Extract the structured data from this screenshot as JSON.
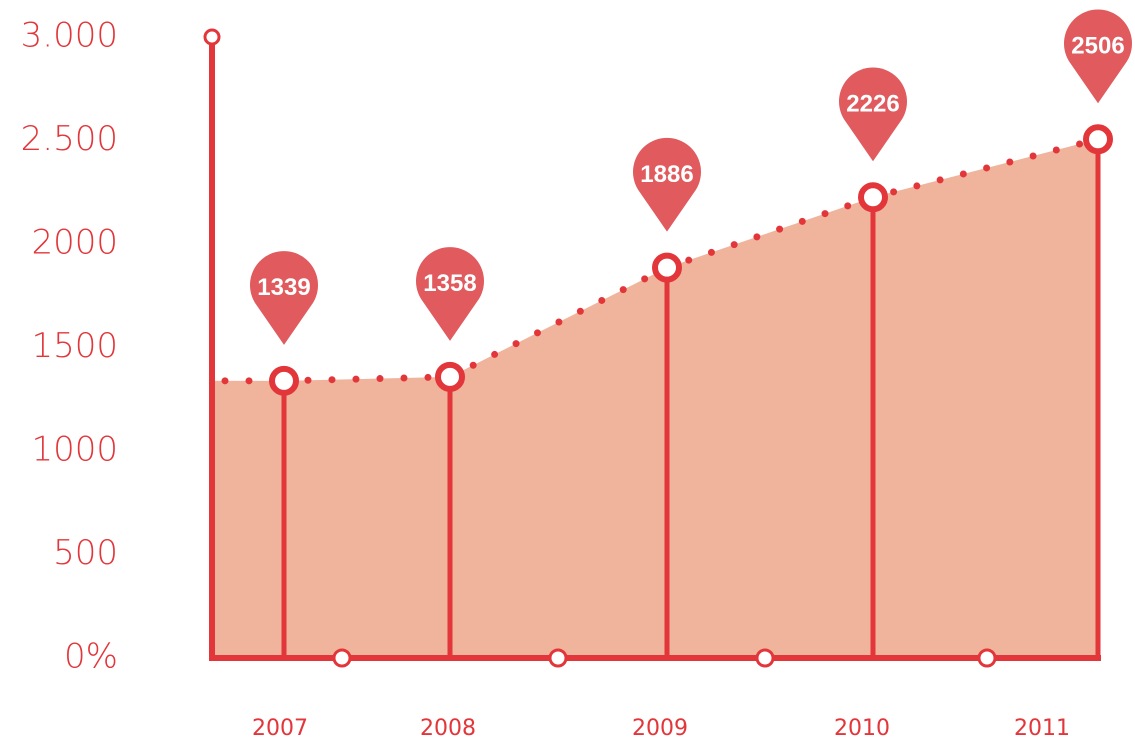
{
  "chart_data": {
    "type": "area",
    "categories": [
      "2007",
      "2008",
      "2009",
      "2010",
      "2011"
    ],
    "values": [
      1339,
      1358,
      1886,
      2226,
      2506
    ],
    "color": "#e2363a",
    "area_color": "#f0b39b",
    "pin_color": "#e05a5e",
    "ylim": [
      0,
      3000
    ],
    "yticks": [
      {
        "value": 0,
        "label": "0%"
      },
      500,
      1000,
      1500,
      2000,
      {
        "value": 2500,
        "label": "2.500"
      },
      {
        "value": 3000,
        "label": "3.000"
      }
    ]
  }
}
